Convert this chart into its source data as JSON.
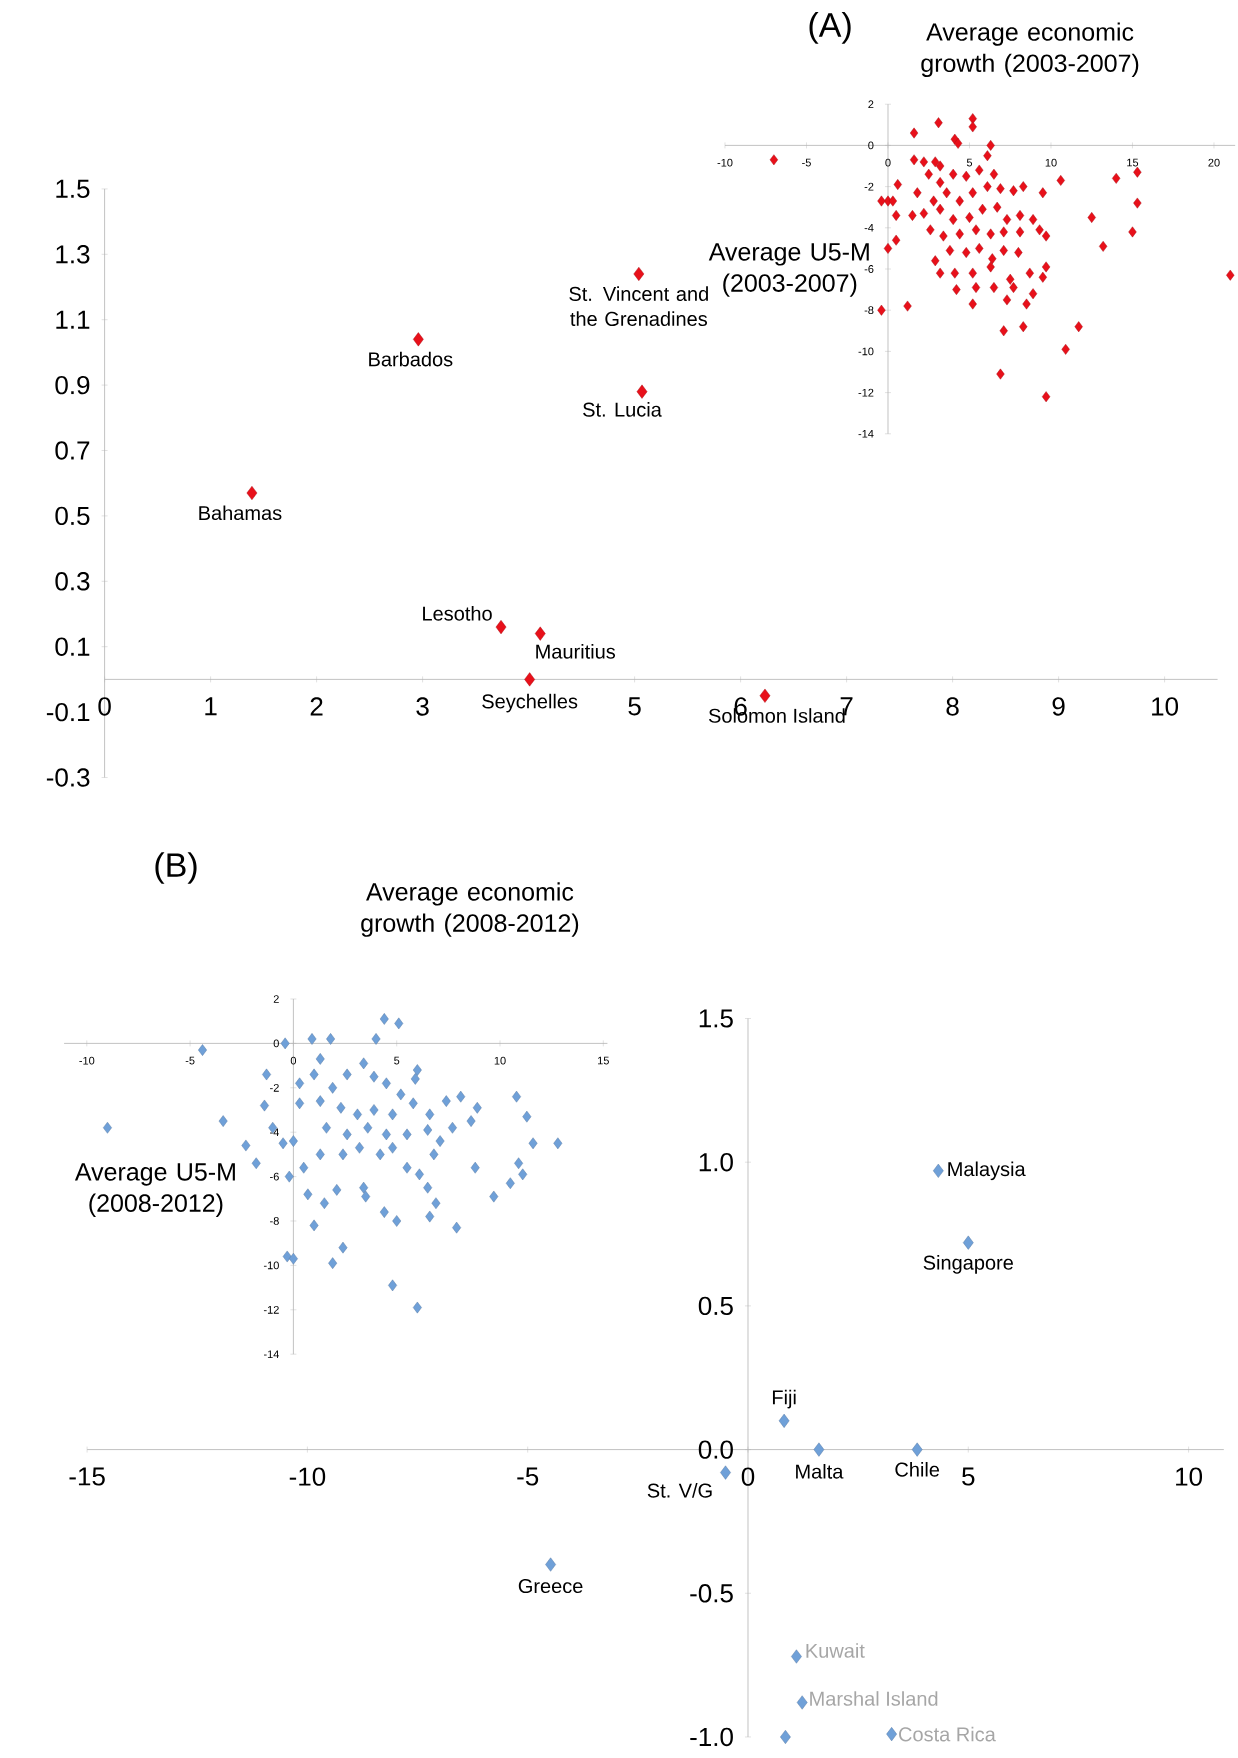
{
  "chart_data": [
    {
      "type": "scatter",
      "title": "(A)",
      "xlabel": "Average economic growth (2003-2007)",
      "ylabel": "Average U5-M (2003-2007)",
      "color": "#e8101a",
      "marker": "diamond",
      "xlim": [
        -10,
        21.3
      ],
      "ylim": [
        -14,
        2
      ],
      "xticks": [
        -10,
        -5,
        0,
        5,
        10,
        15,
        20
      ],
      "yticks": [
        2,
        0,
        -2,
        -4,
        -6,
        -8,
        -10,
        -12,
        -14
      ],
      "x": [
        -7.0,
        1.6,
        3.1,
        5.2,
        5.2,
        4.1,
        4.3,
        6.3,
        6.1,
        0.6,
        1.6,
        2.2,
        0.0,
        0.3,
        -0.4,
        0.5,
        1.5,
        0.5,
        0.0,
        -0.4,
        1.2,
        2.9,
        3.2,
        2.5,
        3.2,
        4.0,
        4.8,
        5.6,
        6.5,
        1.8,
        2.8,
        3.6,
        4.4,
        5.2,
        6.1,
        6.9,
        7.7,
        8.3,
        2.2,
        3.2,
        4.0,
        5.0,
        5.8,
        6.7,
        7.3,
        8.1,
        8.9,
        2.6,
        3.4,
        4.4,
        5.4,
        6.3,
        7.1,
        8.1,
        9.3,
        2.9,
        3.8,
        4.8,
        5.6,
        6.4,
        7.1,
        8.0,
        3.2,
        4.1,
        5.2,
        6.3,
        7.5,
        8.7,
        9.7,
        4.2,
        5.4,
        6.5,
        7.7,
        8.9,
        9.5,
        5.2,
        7.3,
        8.5,
        9.7,
        9.5,
        10.6,
        7.1,
        8.3,
        11.7,
        10.9,
        6.9,
        9.7,
        12.5,
        13.2,
        14.0,
        15.3,
        15.3,
        15.0,
        21.0
      ],
      "values": [
        -0.7,
        0.6,
        1.1,
        1.3,
        0.9,
        0.3,
        0.1,
        0.0,
        -0.5,
        -1.9,
        -0.7,
        -0.8,
        -2.7,
        -2.7,
        -2.7,
        -3.4,
        -3.4,
        -4.6,
        -5.0,
        -8.0,
        -7.8,
        -0.8,
        -1.0,
        -1.4,
        -1.8,
        -1.4,
        -1.5,
        -1.2,
        -1.4,
        -2.3,
        -2.7,
        -2.3,
        -2.7,
        -2.3,
        -2.0,
        -2.1,
        -2.2,
        -2.0,
        -3.3,
        -3.1,
        -3.6,
        -3.5,
        -3.1,
        -3.0,
        -3.6,
        -3.4,
        -3.6,
        -4.1,
        -4.4,
        -4.3,
        -4.1,
        -4.3,
        -4.2,
        -4.2,
        -4.1,
        -5.6,
        -5.1,
        -5.2,
        -5.0,
        -5.5,
        -5.1,
        -5.2,
        -6.2,
        -6.2,
        -6.2,
        -5.9,
        -6.5,
        -6.2,
        -5.9,
        -7.0,
        -6.9,
        -6.9,
        -6.9,
        -7.2,
        -6.4,
        -7.7,
        -7.5,
        -7.7,
        -4.4,
        -2.3,
        -1.7,
        -9.0,
        -8.8,
        -8.8,
        -9.9,
        -11.1,
        -12.2,
        -3.5,
        -4.9,
        -1.6,
        -1.3,
        -2.8,
        -4.2,
        -6.3
      ]
    },
    {
      "type": "scatter",
      "color": "#e8101a",
      "marker": "diamond",
      "xlim": [
        0,
        10.5
      ],
      "ylim": [
        -0.3,
        1.5
      ],
      "xticks": [
        0,
        1,
        2,
        3,
        {
          "value": 4,
          "label": null
        },
        5,
        6,
        7,
        8,
        9,
        10
      ],
      "yticks": [
        -0.3,
        -0.1,
        0.1,
        0.3,
        0.5,
        0.7,
        0.9,
        1.1,
        1.3,
        1.5
      ],
      "x": [
        1.39,
        2.96,
        5.04,
        5.07,
        3.74,
        4.11,
        4.01,
        6.23
      ],
      "values": [
        0.57,
        1.04,
        1.24,
        0.88,
        0.16,
        0.14,
        0.0,
        -0.05
      ],
      "annotations": [
        {
          "text": "Bahamas",
          "x": 1.39,
          "y": 0.57
        },
        {
          "text": "Barbados",
          "x": 2.96,
          "y": 1.04
        },
        {
          "text": "St. Vincent and the Grenadines",
          "x": 5.04,
          "y": 1.24
        },
        {
          "text": "St. Lucia",
          "x": 5.07,
          "y": 0.88
        },
        {
          "text": "Lesotho",
          "x": 3.74,
          "y": 0.16
        },
        {
          "text": "Mauritius",
          "x": 4.11,
          "y": 0.14
        },
        {
          "text": "Seychelles",
          "x": 4.01,
          "y": 0.0
        },
        {
          "text": "Solomon Island",
          "x": 6.23,
          "y": -0.05
        }
      ]
    },
    {
      "type": "scatter",
      "title": "(B)",
      "xlabel": "Average economic growth (2008-2012)",
      "ylabel": "Average U5-M (2008-2012)",
      "color": "#6fa0d8",
      "marker": "diamond",
      "xlim": [
        -11.1,
        15.2
      ],
      "ylim": [
        -14,
        2
      ],
      "xticks": [
        -10,
        -5,
        0,
        5,
        10,
        15
      ],
      "yticks": [
        2,
        0,
        -2,
        -4,
        -6,
        -8,
        -10,
        -12,
        -14
      ],
      "x": [
        -0.4,
        0.9,
        1.8,
        4.0,
        4.4,
        5.1,
        -4.4,
        -9.0,
        -3.4,
        -2.3,
        -1.8,
        -1.3,
        -1.4,
        -1.0,
        -0.5,
        -0.2,
        0.7,
        1.0,
        1.5,
        -0.3,
        0.0,
        1.9,
        2.4,
        2.1,
        3.4,
        3.5,
        4.4,
        5.0,
        4.8,
        6.0,
        6.0,
        5.9,
        1.3,
        1.0,
        0.3,
        1.9,
        2.6,
        3.4,
        3.9,
        4.5,
        5.2,
        0.3,
        1.3,
        2.3,
        3.1,
        3.9,
        4.8,
        5.8,
        6.6,
        7.4,
        8.1,
        8.9,
        8.6,
        7.7,
        7.1,
        6.8,
        6.1,
        6.5,
        6.6,
        7.9,
        6.9,
        5.5,
        4.8,
        4.2,
        3.2,
        2.4,
        1.3,
        0.5,
        0.0,
        1.6,
        2.6,
        3.6,
        4.5,
        5.5,
        6.5,
        9.7,
        8.8,
        10.5,
        10.8,
        11.3,
        11.6,
        12.8,
        10.9,
        11.1
      ],
      "values": [
        0.0,
        0.2,
        0.2,
        0.2,
        1.1,
        0.9,
        -0.3,
        -3.8,
        -3.5,
        -4.6,
        -5.4,
        -1.4,
        -2.8,
        -3.8,
        -4.5,
        -6.0,
        -6.8,
        -8.2,
        -7.2,
        -9.6,
        -9.7,
        -9.9,
        -9.2,
        -6.6,
        -6.5,
        -6.9,
        -7.6,
        -8.0,
        -10.9,
        -11.9,
        -1.2,
        -1.6,
        -0.7,
        -1.4,
        -1.8,
        -2.0,
        -1.4,
        -0.9,
        -1.5,
        -1.8,
        -2.3,
        -2.7,
        -2.6,
        -2.9,
        -3.2,
        -3.0,
        -3.2,
        -2.7,
        -3.2,
        -2.6,
        -2.4,
        -2.9,
        -3.5,
        -3.8,
        -4.4,
        -5.0,
        -5.9,
        -6.5,
        -7.8,
        -8.3,
        -7.2,
        -5.6,
        -4.7,
        -5.0,
        -4.7,
        -5.0,
        -5.0,
        -5.6,
        -4.4,
        -3.8,
        -4.1,
        -3.8,
        -4.1,
        -4.1,
        -3.9,
        -6.9,
        -5.6,
        -6.3,
        -2.4,
        -3.3,
        -4.5,
        -4.5,
        -5.4,
        -5.9
      ]
    },
    {
      "type": "scatter",
      "color": "#6fa0d8",
      "marker": "diamond",
      "xlim": [
        -15,
        10.8
      ],
      "ylim": [
        -1.0,
        1.5
      ],
      "xticks": [
        -15,
        -10,
        -5,
        0,
        5,
        10
      ],
      "yticks": [
        1.5,
        {
          "value": 1,
          "label": "1.0"
        },
        0.5,
        {
          "value": 0,
          "label": "0.0"
        },
        -0.5,
        {
          "value": -1,
          "label": "-1.0"
        }
      ],
      "x": [
        4.32,
        5.0,
        0.82,
        1.61,
        3.84,
        -0.51,
        -4.48,
        1.1,
        1.23,
        0.85,
        3.26
      ],
      "values": [
        0.97,
        0.72,
        0.1,
        0.0,
        0.0,
        -0.08,
        -0.4,
        -0.72,
        -0.88,
        -1.0,
        -0.99
      ],
      "annotations": [
        {
          "text": "Malaysia",
          "x": 4.32,
          "y": 0.97
        },
        {
          "text": "Singapore",
          "x": 5.0,
          "y": 0.72
        },
        {
          "text": "Fiji",
          "x": 0.82,
          "y": 0.1
        },
        {
          "text": "Malta",
          "x": 1.61,
          "y": 0.0
        },
        {
          "text": "Chile",
          "x": 3.84,
          "y": 0.0
        },
        {
          "text": "St. V/G",
          "x": -0.51,
          "y": -0.08
        },
        {
          "text": "Greece",
          "x": -4.48,
          "y": -0.4
        },
        {
          "text": "Kuwait",
          "x": 1.1,
          "y": -0.72
        },
        {
          "text": "Marshal Island",
          "x": 1.23,
          "y": -0.88
        },
        {
          "text": "Costa Rica",
          "x": 3.26,
          "y": -0.99
        }
      ]
    }
  ]
}
